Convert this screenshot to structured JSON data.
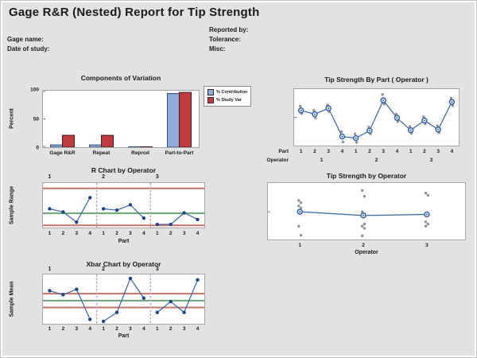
{
  "header": {
    "title": "Gage R&R (Nested) Report for Tip Strength",
    "fields": {
      "gage_name": "Gage name:",
      "date_of_study": "Date of study:",
      "reported_by": "Reported by:",
      "tolerance": "Tolerance:",
      "misc": "Misc:"
    }
  },
  "colors": {
    "background": "#E2E2E2",
    "plot_border": "#A6A6A6",
    "bar_blue": "#8FACD9",
    "bar_blue_border": "#2E4D79",
    "bar_red": "#C03A3E",
    "bar_red_border": "#3A1D1E",
    "line_blue": "#3465A8",
    "marker_blue": "#1F4586",
    "limit_red": "#C4736C",
    "center_green": "#6AA874",
    "separator_purple": "#B29FD9",
    "gray_point": "#919191",
    "tick_mark": "#808080"
  },
  "chart_data": [
    {
      "id": "components_of_variation",
      "type": "bar",
      "title": "Components of Variation",
      "ylabel": "Percent",
      "ylim": [
        0,
        100
      ],
      "yticks": [
        "0",
        "50",
        "100"
      ],
      "grid": false,
      "legend_position": "right",
      "categories": [
        "Gage R&R",
        "Repeat",
        "Reprod",
        "Part-to-Part"
      ],
      "series": [
        {
          "name": "% Contribution",
          "values": [
            4,
            4,
            0.3,
            95
          ]
        },
        {
          "name": "% Study Var",
          "values": [
            21,
            21,
            0.6,
            97
          ]
        }
      ]
    },
    {
      "id": "tip_strength_by_part",
      "type": "nested_line",
      "title": "Tip Strength By Part ( Operator )",
      "note": "y axis unlabeled in image; values are fractions of plot height (0=bottom,1=top)",
      "x_rows": [
        {
          "label": "Part",
          "ticks": [
            "1",
            "2",
            "3",
            "4",
            "1",
            "2",
            "3",
            "4",
            "1",
            "2",
            "3",
            "4"
          ]
        },
        {
          "label": "Operator",
          "ticks": [
            "1",
            "2",
            "3"
          ]
        }
      ],
      "means": [
        0.63,
        0.56,
        0.67,
        0.14,
        0.11,
        0.25,
        0.82,
        0.49,
        0.26,
        0.44,
        0.27,
        0.79
      ],
      "points": [
        [
          0.71,
          0.57
        ],
        [
          0.63,
          0.49
        ],
        [
          0.73,
          0.61
        ],
        [
          0.23,
          0.04
        ],
        [
          0.19,
          0.03
        ],
        [
          0.32,
          0.19
        ],
        [
          0.93,
          0.75
        ],
        [
          0.56,
          0.42
        ],
        [
          0.33,
          0.2
        ],
        [
          0.51,
          0.38
        ],
        [
          0.34,
          0.21
        ],
        [
          0.86,
          0.72
        ]
      ]
    },
    {
      "id": "r_chart_by_operator",
      "type": "control",
      "title": "R Chart by Operator",
      "ylabel": "Sample Range",
      "xlabel": "Part",
      "panel_labels": [
        "1",
        "2",
        "3"
      ],
      "xticks": [
        "1",
        "2",
        "3",
        "4",
        "1",
        "2",
        "3",
        "4",
        "1",
        "2",
        "3",
        "4"
      ],
      "note": "limits and points as fractions of plot height (0=bottom,1=top)",
      "ucl": 0.88,
      "center": 0.32,
      "lcl": 0.05,
      "values": [
        0.42,
        0.35,
        0.12,
        0.67,
        0.42,
        0.39,
        0.51,
        0.21,
        0.07,
        0.07,
        0.33,
        0.18
      ]
    },
    {
      "id": "tip_strength_by_operator",
      "type": "operator_scatter",
      "title": "Tip Strength by Operator",
      "xlabel": "Operator",
      "categories": [
        "1",
        "2",
        "3"
      ],
      "note": "y axis unlabeled in image; values are fractions of plot height (0=bottom,1=top)",
      "means": [
        0.49,
        0.42,
        0.44
      ],
      "points": [
        [
          0.7,
          0.66,
          0.6,
          0.56,
          0.22,
          0.05
        ],
        [
          0.89,
          0.78,
          0.49,
          0.45,
          0.42,
          0.26,
          0.22,
          0.18,
          0.04
        ],
        [
          0.84,
          0.8,
          0.3,
          0.26,
          0.22
        ]
      ]
    },
    {
      "id": "xbar_chart_by_operator",
      "type": "control",
      "title": "Xbar Chart by Operator",
      "ylabel": "Sample Mean",
      "xlabel": "Part",
      "panel_labels": [
        "1",
        "2",
        "3"
      ],
      "xticks": [
        "1",
        "2",
        "3",
        "4",
        "1",
        "2",
        "3",
        "4",
        "1",
        "2",
        "3",
        "4"
      ],
      "note": "limits and points as fractions of plot height (0=bottom,1=top)",
      "ucl": 0.61,
      "center": 0.47,
      "lcl": 0.33,
      "values": [
        0.67,
        0.59,
        0.7,
        0.09,
        0.05,
        0.23,
        0.92,
        0.52,
        0.23,
        0.45,
        0.23,
        0.89
      ]
    }
  ]
}
